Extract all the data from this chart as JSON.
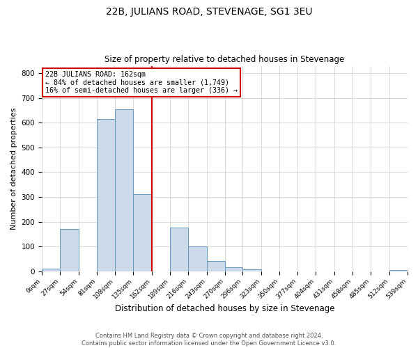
{
  "title": "22B, JULIANS ROAD, STEVENAGE, SG1 3EU",
  "subtitle": "Size of property relative to detached houses in Stevenage",
  "xlabel": "Distribution of detached houses by size in Stevenage",
  "ylabel": "Number of detached properties",
  "bin_edges": [
    0,
    27,
    54,
    81,
    108,
    135,
    162,
    189,
    216,
    243,
    270,
    296,
    323,
    350,
    377,
    404,
    431,
    458,
    485,
    512,
    539
  ],
  "bin_counts": [
    10,
    170,
    0,
    615,
    655,
    310,
    0,
    175,
    100,
    40,
    15,
    8,
    0,
    0,
    0,
    0,
    0,
    0,
    0,
    5
  ],
  "bar_facecolor": "#ccd9e8",
  "bar_edgecolor": "#6699bb",
  "vline_x": 162,
  "vline_color": "#cc0000",
  "annotation_title": "22B JULIANS ROAD: 162sqm",
  "annotation_line1": "← 84% of detached houses are smaller (1,749)",
  "annotation_line2": "16% of semi-detached houses are larger (336) →",
  "annotation_box_edgecolor": "#cc0000",
  "ylim": [
    0,
    830
  ],
  "xlim": [
    0,
    539
  ],
  "tick_labels": [
    "0sqm",
    "27sqm",
    "54sqm",
    "81sqm",
    "108sqm",
    "135sqm",
    "162sqm",
    "189sqm",
    "216sqm",
    "243sqm",
    "270sqm",
    "296sqm",
    "323sqm",
    "350sqm",
    "377sqm",
    "404sqm",
    "431sqm",
    "458sqm",
    "485sqm",
    "512sqm",
    "539sqm"
  ],
  "footer_line1": "Contains HM Land Registry data © Crown copyright and database right 2024.",
  "footer_line2": "Contains public sector information licensed under the Open Government Licence v3.0.",
  "background_color": "#ffffff",
  "grid_color": "#cccccc"
}
